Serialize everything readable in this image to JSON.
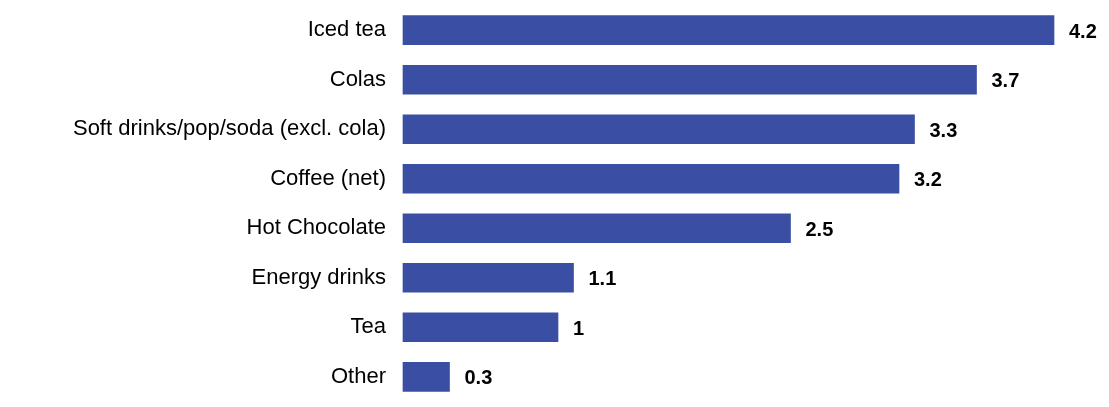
{
  "chart_data": {
    "type": "bar",
    "orientation": "horizontal",
    "categories": [
      "Iced tea",
      "Colas",
      "Soft drinks/pop/soda (excl. cola)",
      "Coffee (net)",
      "Hot Chocolate",
      "Energy drinks",
      "Tea",
      "Other"
    ],
    "values": [
      4.2,
      3.7,
      3.3,
      3.2,
      2.5,
      1.1,
      1,
      0.3
    ],
    "color": "#3a4fa3",
    "data_labels": true
  }
}
